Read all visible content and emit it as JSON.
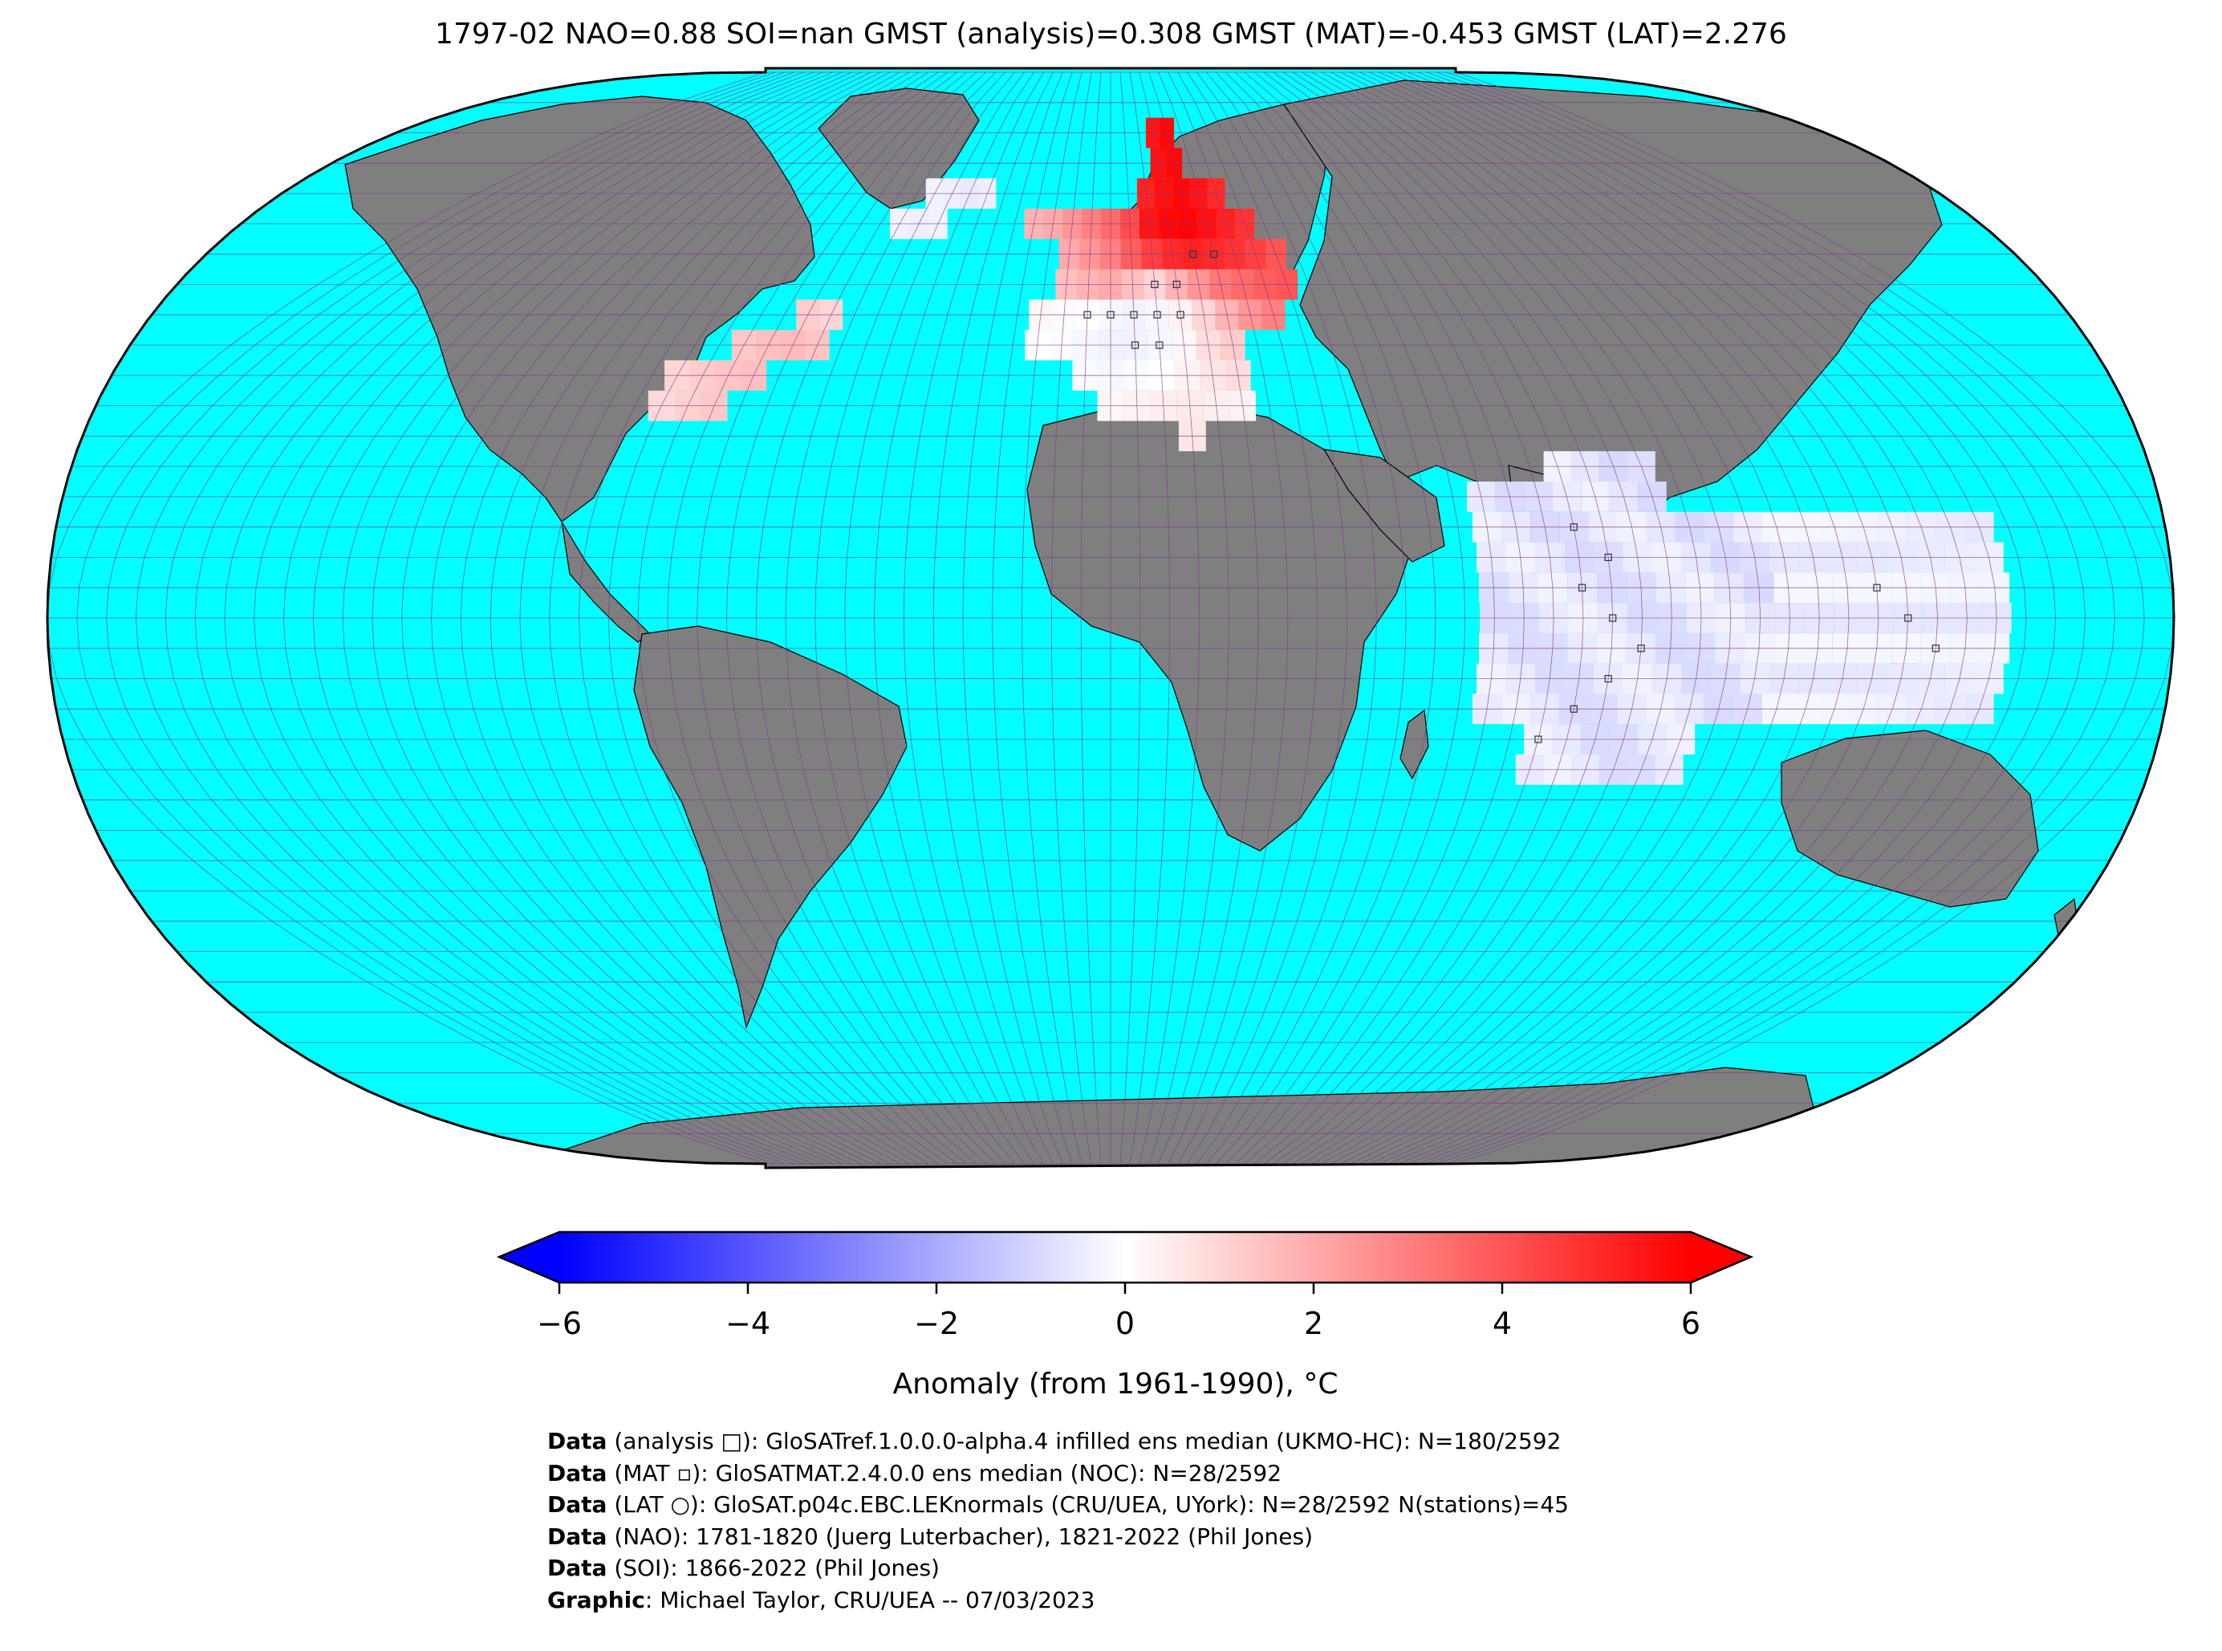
{
  "title": "1797-02 NAO=0.88 SOI=nan GMST (analysis)=0.308 GMST (MAT)=-0.453 GMST (LAT)=2.276",
  "colors": {
    "ocean": "#00ffff",
    "land": "#7f7f7f",
    "graticule": "#7a3b8e",
    "border": "#000000"
  },
  "colorbar": {
    "label": "Anomaly (from 1961-1990), °C",
    "ticks": [
      "−6",
      "−4",
      "−2",
      "0",
      "2",
      "4",
      "6"
    ],
    "tick_values": [
      -6,
      -4,
      -2,
      0,
      2,
      4,
      6
    ],
    "range": [
      -6,
      6
    ],
    "colormap": "bwr",
    "extend": "both"
  },
  "credits": [
    {
      "bold": "Data",
      "text": " (analysis □): GloSATref.1.0.0.0-alpha.4 infilled ens median (UKMO-HC): N=180/2592"
    },
    {
      "bold": "Data",
      "text": " (MAT ▫): GloSATMAT.2.4.0.0 ens median (NOC): N=28/2592"
    },
    {
      "bold": "Data",
      "text": " (LAT ○): GloSAT.p04c.EBC.LEKnormals (CRU/UEA, UYork): N=28/2592 N(stations)=45"
    },
    {
      "bold": "Data",
      "text": " (NAO): 1781-1820 (Juerg Luterbacher), 1821-2022 (Phil Jones)"
    },
    {
      "bold": "Data",
      "text": " (SOI): 1866-2022 (Phil Jones)"
    },
    {
      "bold": "Graphic",
      "text": ": Michael Taylor, CRU/UEA -- 07/03/2023"
    }
  ],
  "map": {
    "projection": "Robinson",
    "grid_resolution_deg": 5,
    "anomaly_regions": [
      {
        "region": "Europe / Scandinavia",
        "anomaly": 4.5
      },
      {
        "region": "Greenland",
        "anomaly": -0.5
      },
      {
        "region": "Eastern North America",
        "anomaly": 1.2
      },
      {
        "region": "Mediterranean / North Africa",
        "anomaly": 0.3
      },
      {
        "region": "Indian Ocean / Maritime Continent",
        "anomaly": -0.8
      }
    ]
  }
}
